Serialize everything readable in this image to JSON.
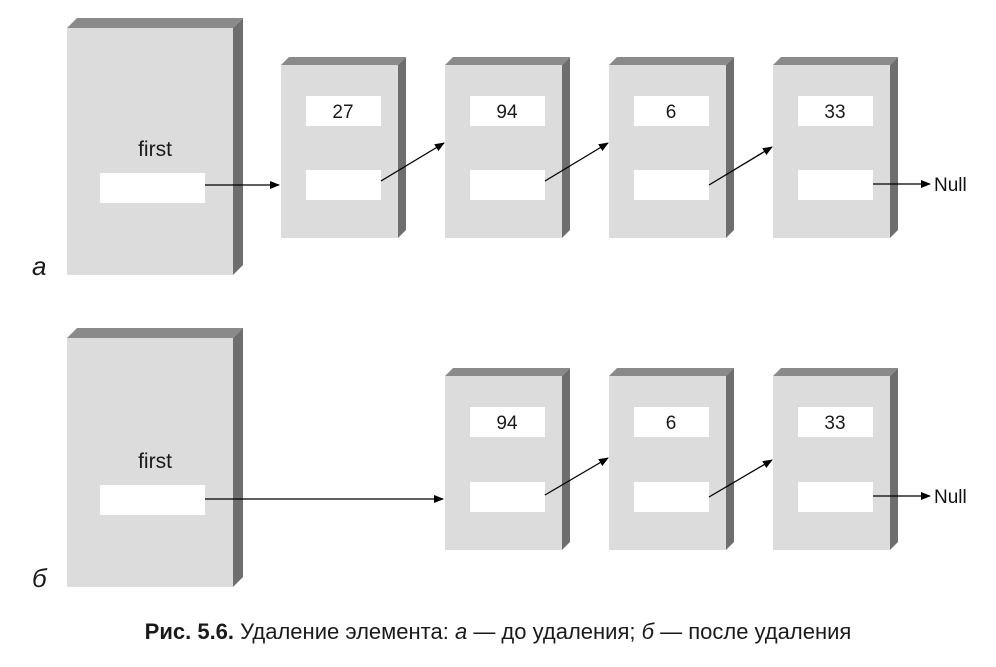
{
  "panels": [
    {
      "letter": "а",
      "first_label": "first",
      "nodes": [
        "27",
        "94",
        "6",
        "33"
      ],
      "null_label": "Null"
    },
    {
      "letter": "б",
      "first_label": "first",
      "nodes": [
        "94",
        "6",
        "33"
      ],
      "null_label": "Null"
    }
  ],
  "caption": {
    "number": "Рис. 5.6.",
    "text_1": " Удаление элемента: ",
    "letter_a": "а",
    "text_2": " — до удаления; ",
    "letter_b": "б",
    "text_3": " — после удаления"
  },
  "colors": {
    "box_face": "#dcdcdc",
    "box_side": "#6e6e6e",
    "field": "#ffffff",
    "line": "#000000"
  }
}
